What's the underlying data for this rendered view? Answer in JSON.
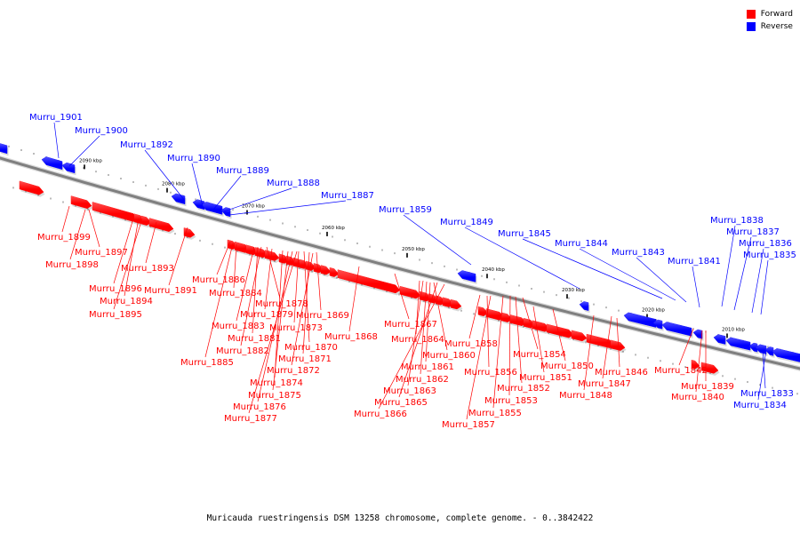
{
  "caption": "Muricauda ruestringensis DSM 13258 chromosome, complete genome. - 0..3842422",
  "legend": [
    {
      "label": "Forward",
      "color": "#ff0000"
    },
    {
      "label": "Reverse",
      "color": "#0000ff"
    }
  ],
  "colors": {
    "forward": "#ff0000",
    "reverse": "#0000ff",
    "backbone": "#7f7f7f"
  },
  "ticks": [
    "2090 kbp",
    "2080 kbp",
    "2070 kbp",
    "2060 kbp",
    "2050 kbp",
    "2040 kbp",
    "2030 kbp",
    "2020 kbp",
    "2010 kbp"
  ],
  "forward_genes": [
    "Murru_1899",
    "Murru_1897",
    "Murru_1898",
    "Murru_1896",
    "Murru_1894",
    "Murru_1895",
    "Murru_1893",
    "Murru_1891",
    "Murru_1886",
    "Murru_1884",
    "Murru_1878",
    "Murru_1879",
    "Murru_1883",
    "Murru_1881",
    "Murru_1882",
    "Murru_1885",
    "Murru_1869",
    "Murru_1873",
    "Murru_1870",
    "Murru_1871",
    "Murru_1872",
    "Murru_1874",
    "Murru_1875",
    "Murru_1876",
    "Murru_1877",
    "Murru_1867",
    "Murru_1868",
    "Murru_1864",
    "Murru_1860",
    "Murru_1861",
    "Murru_1862",
    "Murru_1863",
    "Murru_1865",
    "Murru_1866",
    "Murru_1858",
    "Murru_1856",
    "Murru_1854",
    "Murru_1852",
    "Murru_1853",
    "Murru_1855",
    "Murru_1857",
    "Murru_1850",
    "Murru_1851",
    "Murru_1846",
    "Murru_1847",
    "Murru_1848",
    "Murru_1842",
    "Murru_1839",
    "Murru_1840"
  ],
  "reverse_genes": [
    "Murru_1901",
    "Murru_1900",
    "Murru_1892",
    "Murru_1890",
    "Murru_1889",
    "Murru_1888",
    "Murru_1887",
    "Murru_1859",
    "Murru_1849",
    "Murru_1845",
    "Murru_1844",
    "Murru_1843",
    "Murru_1841",
    "Murru_1838",
    "Murru_1837",
    "Murru_1836",
    "Murru_1835",
    "Murru_1833",
    "Murru_1834"
  ]
}
